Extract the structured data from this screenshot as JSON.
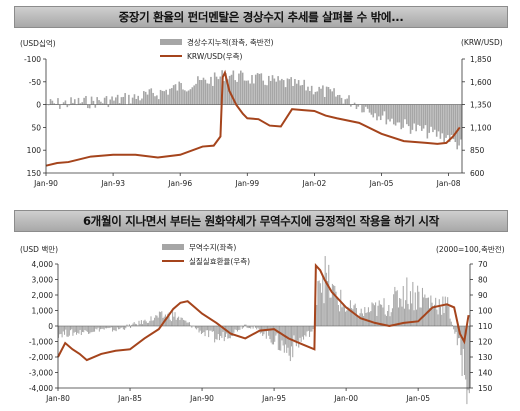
{
  "chart_data": [
    {
      "type": "bar+line",
      "title": "중장기 환율의 펀더멘탈은 경상수지 추세를 살펴볼 수 밖에...",
      "left_unit": "(USD십억)",
      "right_unit": "(KRW/USD)",
      "left_axis": {
        "ylim": [
          150,
          -100
        ],
        "ticks": [
          -100,
          -50,
          0,
          50,
          100,
          150
        ],
        "inverted": true
      },
      "right_axis": {
        "ylim": [
          600,
          1850
        ],
        "ticks": [
          1850,
          1600,
          1350,
          1100,
          850,
          600
        ]
      },
      "x_ticks": [
        "Jan-90",
        "Jan-93",
        "Jan-96",
        "Jan-99",
        "Jan-02",
        "Jan-05",
        "Jan-08"
      ],
      "x_range": [
        1990.0,
        2008.6
      ],
      "legend_position": "top-center",
      "grid": false,
      "bar_color": "#a6a6a6",
      "line_color": "#a5441c",
      "series": [
        {
          "name": "경상수지누적(좌측, 축반전)",
          "kind": "bar",
          "axis": "left",
          "x": [
            1990.0,
            1991.0,
            1992.0,
            1993.0,
            1994.0,
            1995.0,
            1996.0,
            1997.0,
            1997.5,
            1997.8,
            1998.0,
            1998.5,
            1999.0,
            2000.0,
            2001.0,
            2002.0,
            2003.0,
            2004.0,
            2005.0,
            2006.0,
            2007.0,
            2007.8,
            2008.0,
            2008.3,
            2008.6
          ],
          "values": [
            0,
            -3,
            -6,
            -10,
            -15,
            -25,
            -40,
            -50,
            -55,
            -60,
            -68,
            -62,
            -58,
            -52,
            -45,
            -35,
            -20,
            0,
            25,
            45,
            60,
            70,
            70,
            85,
            90
          ]
        },
        {
          "name": "KRW/USD(우측)",
          "kind": "line",
          "axis": "right",
          "x": [
            1990.0,
            1990.5,
            1991.0,
            1992.0,
            1993.0,
            1994.0,
            1995.0,
            1996.0,
            1997.0,
            1997.5,
            1997.8,
            1997.9,
            1998.0,
            1998.2,
            1998.5,
            1998.8,
            1999.0,
            1999.5,
            2000.0,
            2000.5,
            2001.0,
            2001.5,
            2002.0,
            2002.5,
            2003.0,
            2004.0,
            2005.0,
            2006.0,
            2007.0,
            2007.5,
            2007.9,
            2008.2,
            2008.5
          ],
          "values": [
            680,
            710,
            720,
            780,
            800,
            800,
            770,
            800,
            890,
            900,
            1000,
            1650,
            1700,
            1500,
            1350,
            1250,
            1200,
            1190,
            1120,
            1110,
            1300,
            1290,
            1280,
            1230,
            1200,
            1150,
            1030,
            950,
            930,
            920,
            930,
            1000,
            1100
          ]
        }
      ]
    },
    {
      "type": "bar+line",
      "title": "6개월이 지나면서 부터는 원화약세가 무역수지에 긍정적인 작용을 하기 시작",
      "left_unit": "(USD 백만)",
      "right_unit": "(2000=100,축반전)",
      "left_axis": {
        "ylim": [
          -4000,
          4000
        ],
        "ticks": [
          4000,
          3000,
          2000,
          1000,
          0,
          -1000,
          -2000,
          -3000,
          -4000
        ]
      },
      "right_axis": {
        "ylim": [
          150,
          70
        ],
        "ticks": [
          70,
          80,
          90,
          100,
          110,
          120,
          130,
          140,
          150
        ],
        "inverted": true
      },
      "x_ticks": [
        "Jan-80",
        "Jan-85",
        "Jan-90",
        "Jan-95",
        "Jan-00",
        "Jan-05"
      ],
      "x_range": [
        1980.0,
        2008.6
      ],
      "legend_position": "top-center",
      "grid": false,
      "bar_color": "#a6a6a6",
      "line_color": "#a5441c",
      "series": [
        {
          "name": "무역수지(좌측)",
          "kind": "bar",
          "axis": "left",
          "x": [
            1980.0,
            1981.0,
            1982.0,
            1983.0,
            1984.0,
            1985.0,
            1986.0,
            1987.0,
            1988.0,
            1989.0,
            1990.0,
            1991.0,
            1992.0,
            1993.0,
            1994.0,
            1995.0,
            1996.0,
            1997.0,
            1997.8,
            1998.0,
            1998.5,
            1999.0,
            2000.0,
            2001.0,
            2002.0,
            2003.0,
            2004.0,
            2005.0,
            2006.0,
            2007.0,
            2008.0,
            2008.4
          ],
          "values": [
            -500,
            -450,
            -350,
            -200,
            -250,
            0,
            300,
            600,
            700,
            200,
            -400,
            -800,
            -500,
            100,
            -300,
            -900,
            -1600,
            -800,
            -200,
            3800,
            3200,
            2200,
            1200,
            800,
            1100,
            1300,
            2200,
            2000,
            1500,
            1400,
            -2000,
            -3400
          ]
        },
        {
          "name": "실질실효환율(우측)",
          "kind": "line",
          "axis": "right",
          "x": [
            1980.0,
            1980.5,
            1981.0,
            1981.5,
            1982.0,
            1983.0,
            1984.0,
            1985.0,
            1986.0,
            1987.0,
            1988.0,
            1988.5,
            1989.0,
            1989.5,
            1990.0,
            1991.0,
            1992.0,
            1993.0,
            1994.0,
            1995.0,
            1996.0,
            1997.0,
            1997.8,
            1997.9,
            1998.2,
            1998.5,
            1999.0,
            2000.0,
            2001.0,
            2002.0,
            2003.0,
            2004.0,
            2005.0,
            2006.0,
            2007.0,
            2007.5,
            2007.9,
            2008.2,
            2008.5
          ],
          "values": [
            130,
            121,
            125,
            128,
            132,
            128,
            126,
            125,
            118,
            112,
            99,
            95,
            94,
            98,
            102,
            108,
            115,
            118,
            113,
            112,
            118,
            122,
            125,
            71,
            74,
            80,
            88,
            98,
            105,
            108,
            110,
            108,
            107,
            98,
            96,
            98,
            115,
            120,
            103
          ]
        }
      ]
    }
  ]
}
